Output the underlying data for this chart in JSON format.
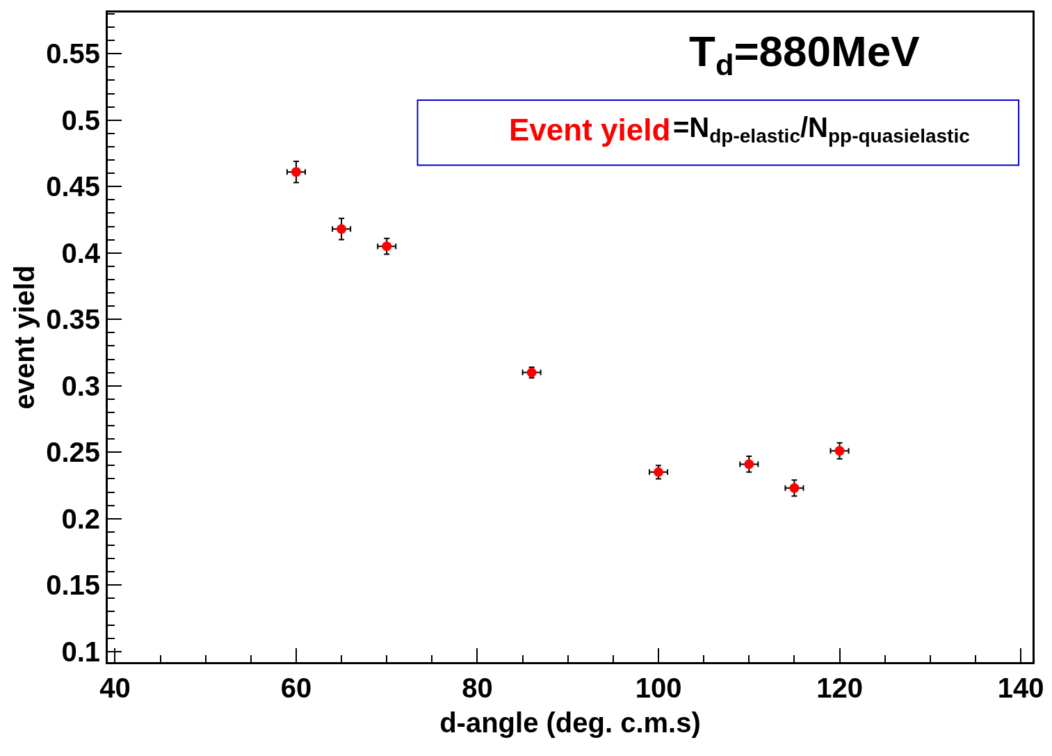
{
  "chart_data": {
    "type": "scatter",
    "xlabel": "d-angle (deg. c.m.s)",
    "ylabel": "event yield",
    "annotations": [
      "T$_{d}$=880MeV",
      "Event yield",
      "=N$_{dp-elastic}$/N$_{pp-quasielastic}$"
    ],
    "x": [
      60,
      65,
      70,
      86,
      100,
      110,
      115,
      120
    ],
    "series": [
      {
        "color": "#ff0000",
        "values": [
          0.461,
          0.418,
          0.405,
          0.31,
          0.235,
          0.241,
          0.223,
          0.251
        ],
        "errors": [
          0.008,
          0.008,
          0.006,
          0.004,
          0.005,
          0.006,
          0.006,
          0.006
        ],
        "xerrors": [
          1,
          1,
          1,
          1,
          1,
          1,
          1,
          1
        ]
      }
    ],
    "xlim": [
      39.2,
      141.3
    ],
    "ylim": [
      0.092,
      0.581
    ],
    "xticks": [
      40,
      60,
      80,
      100,
      120,
      140
    ],
    "yticks": [
      0.1,
      0.15,
      0.2,
      0.25,
      0.3,
      0.35,
      0.4,
      0.45,
      0.5,
      0.55
    ],
    "marker": "circle"
  }
}
